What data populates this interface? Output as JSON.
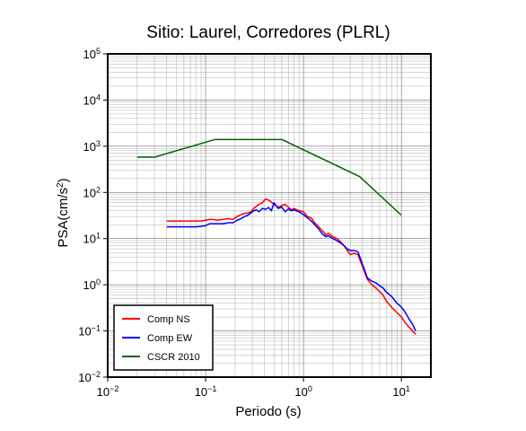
{
  "chart_data": {
    "type": "line",
    "title": "Sitio: Laurel, Corredores (PLRL)",
    "xlabel": "Periodo (s)",
    "ylabel_base": "PSA(cm/s",
    "ylabel_sup": "2",
    "ylabel_end": ")",
    "xscale": "log",
    "yscale": "log",
    "xlim": [
      0.01,
      20
    ],
    "ylim": [
      0.01,
      100000
    ],
    "grid": true,
    "legend_position": "bottom-left",
    "x_ticks": [
      {
        "value": 0.01,
        "base": "10",
        "exp": "−2"
      },
      {
        "value": 0.1,
        "base": "10",
        "exp": "−1"
      },
      {
        "value": 1,
        "base": "10",
        "exp": "0"
      },
      {
        "value": 10,
        "base": "10",
        "exp": "1"
      }
    ],
    "y_ticks": [
      {
        "value": 0.01,
        "base": "10",
        "exp": "−2"
      },
      {
        "value": 0.1,
        "base": "10",
        "exp": "−1"
      },
      {
        "value": 1,
        "base": "10",
        "exp": "0"
      },
      {
        "value": 10,
        "base": "10",
        "exp": "1"
      },
      {
        "value": 100,
        "base": "10",
        "exp": "2"
      },
      {
        "value": 1000,
        "base": "10",
        "exp": "3"
      },
      {
        "value": 10000,
        "base": "10",
        "exp": "4"
      },
      {
        "value": 100000,
        "base": "10",
        "exp": "5"
      }
    ],
    "series": [
      {
        "name": "Comp NS",
        "color": "#ff0000",
        "x": [
          0.04,
          0.05,
          0.06,
          0.07,
          0.08,
          0.09,
          0.1,
          0.11,
          0.12,
          0.13,
          0.15,
          0.17,
          0.19,
          0.21,
          0.23,
          0.25,
          0.27,
          0.29,
          0.31,
          0.33,
          0.35,
          0.38,
          0.41,
          0.44,
          0.47,
          0.5,
          0.55,
          0.6,
          0.65,
          0.7,
          0.75,
          0.8,
          0.9,
          1.0,
          1.1,
          1.2,
          1.3,
          1.4,
          1.5,
          1.6,
          1.7,
          1.8,
          2.0,
          2.2,
          2.4,
          2.6,
          2.8,
          3.0,
          3.3,
          3.6,
          4.0,
          4.5,
          5.0,
          5.5,
          6.0,
          6.5,
          7.0,
          8.0,
          9.0,
          10,
          11,
          12,
          13,
          14
        ],
        "values": [
          24,
          24,
          24,
          24,
          24,
          24,
          25,
          26,
          26,
          25,
          26,
          27,
          26,
          30,
          33,
          35,
          36,
          38,
          45,
          50,
          55,
          60,
          72,
          68,
          62,
          55,
          48,
          52,
          55,
          48,
          42,
          45,
          40,
          38,
          30,
          28,
          22,
          19,
          16,
          14,
          12,
          13,
          11,
          10,
          8.5,
          7,
          5.5,
          4.5,
          4.8,
          4.5,
          2.5,
          1.3,
          1.0,
          0.85,
          0.7,
          0.6,
          0.45,
          0.32,
          0.25,
          0.2,
          0.15,
          0.12,
          0.1,
          0.085
        ]
      },
      {
        "name": "Comp EW",
        "color": "#0000ff",
        "x": [
          0.04,
          0.05,
          0.06,
          0.07,
          0.08,
          0.09,
          0.1,
          0.11,
          0.12,
          0.13,
          0.15,
          0.17,
          0.19,
          0.21,
          0.23,
          0.25,
          0.27,
          0.29,
          0.31,
          0.33,
          0.35,
          0.38,
          0.41,
          0.44,
          0.47,
          0.5,
          0.55,
          0.6,
          0.65,
          0.7,
          0.75,
          0.8,
          0.9,
          1.0,
          1.1,
          1.2,
          1.3,
          1.4,
          1.5,
          1.6,
          1.7,
          1.8,
          2.0,
          2.2,
          2.4,
          2.6,
          2.8,
          3.0,
          3.3,
          3.6,
          4.0,
          4.5,
          5.0,
          5.5,
          6.0,
          6.5,
          7.0,
          8.0,
          9.0,
          10,
          11,
          12,
          13,
          14
        ],
        "values": [
          18,
          18,
          18,
          18,
          18,
          18.5,
          19,
          21,
          21,
          21,
          21,
          22,
          22,
          25,
          27,
          30,
          32,
          36,
          40,
          42,
          38,
          45,
          43,
          47,
          40,
          60,
          45,
          48,
          38,
          44,
          40,
          42,
          38,
          33,
          28,
          24,
          20,
          17,
          14,
          12,
          11,
          11.5,
          10,
          9,
          8,
          7,
          6,
          5.5,
          5.5,
          5.2,
          2.8,
          1.4,
          1.2,
          1.1,
          0.95,
          0.85,
          0.7,
          0.55,
          0.4,
          0.33,
          0.25,
          0.18,
          0.14,
          0.1
        ]
      },
      {
        "name": "CSCR 2010",
        "color": "#006400",
        "x": [
          0.02,
          0.03,
          0.125,
          0.6,
          3.75,
          10
        ],
        "values": [
          580,
          580,
          1400,
          1400,
          220,
          32
        ]
      }
    ]
  }
}
